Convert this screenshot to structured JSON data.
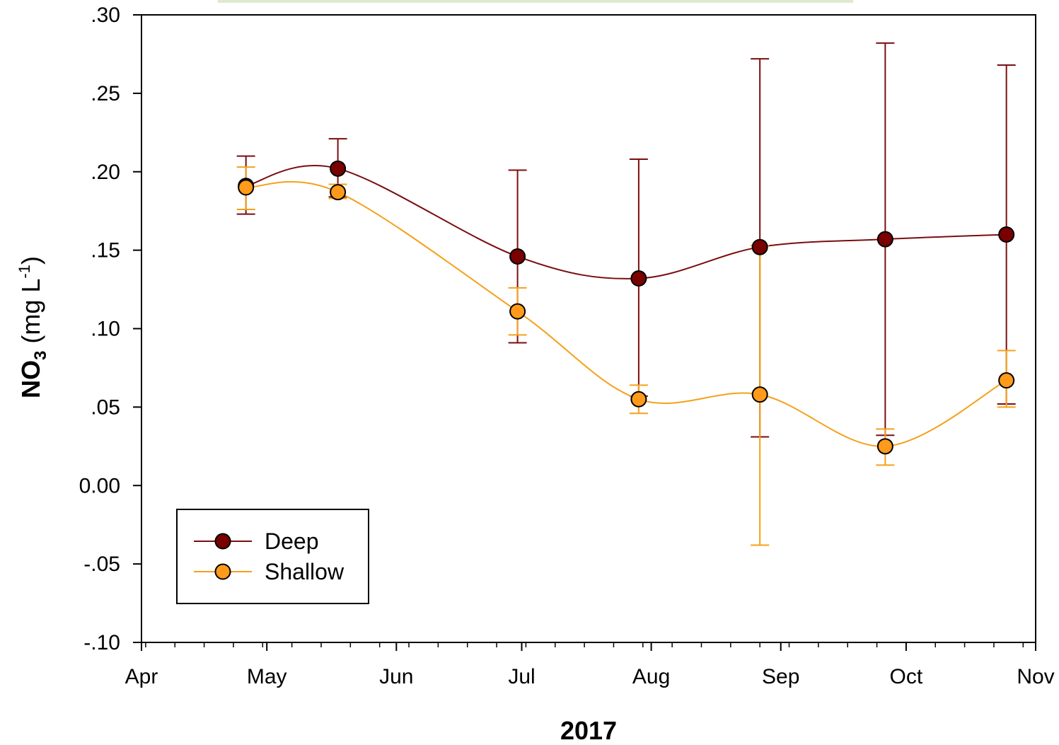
{
  "chart_data": {
    "type": "line",
    "xlabel": "2017",
    "ylabel": {
      "prefix": "NO",
      "subscript": "3",
      "unit_open": " (mg L",
      "superscript": "-1",
      "unit_close": ")"
    },
    "ylim": [
      -0.1,
      0.3
    ],
    "y_ticks": [
      {
        "value": 0.3,
        "label": ".30"
      },
      {
        "value": 0.25,
        "label": ".25"
      },
      {
        "value": 0.2,
        "label": ".20"
      },
      {
        "value": 0.15,
        "label": ".15"
      },
      {
        "value": 0.1,
        "label": ".10"
      },
      {
        "value": 0.05,
        "label": ".05"
      },
      {
        "value": 0.0,
        "label": "0.00"
      },
      {
        "value": -0.05,
        "label": "-.05"
      },
      {
        "value": -0.1,
        "label": "-.10"
      }
    ],
    "xlim": [
      "2017-04-01",
      "2017-11-01"
    ],
    "x_ticks": [
      {
        "date": "2017-04-01",
        "label": "Apr"
      },
      {
        "date": "2017-05-01",
        "label": "May"
      },
      {
        "date": "2017-06-01",
        "label": "Jun"
      },
      {
        "date": "2017-07-01",
        "label": "Jul"
      },
      {
        "date": "2017-08-01",
        "label": "Aug"
      },
      {
        "date": "2017-09-01",
        "label": "Sep"
      },
      {
        "date": "2017-10-01",
        "label": "Oct"
      },
      {
        "date": "2017-11-01",
        "label": "Nov"
      }
    ],
    "grid": false,
    "legend": "bottom-left",
    "series": [
      {
        "name": "Deep",
        "color": "#7a0e10",
        "marker_color": "#7a0000",
        "points": [
          {
            "x": "2017-04-26",
            "y": 0.191,
            "err_low": 0.173,
            "err_high": 0.21
          },
          {
            "x": "2017-05-18",
            "y": 0.202,
            "err_low": 0.184,
            "err_high": 0.221
          },
          {
            "x": "2017-06-30",
            "y": 0.146,
            "err_low": 0.091,
            "err_high": 0.201
          },
          {
            "x": "2017-07-29",
            "y": 0.132,
            "err_low": 0.057,
            "err_high": 0.208
          },
          {
            "x": "2017-08-27",
            "y": 0.152,
            "err_low": 0.031,
            "err_high": 0.272
          },
          {
            "x": "2017-09-26",
            "y": 0.157,
            "err_low": 0.032,
            "err_high": 0.282
          },
          {
            "x": "2017-10-25",
            "y": 0.16,
            "err_low": 0.052,
            "err_high": 0.268
          }
        ]
      },
      {
        "name": "Shallow",
        "color": "#f5a01a",
        "marker_color": "#ff9a1a",
        "points": [
          {
            "x": "2017-04-26",
            "y": 0.19,
            "err_low": 0.176,
            "err_high": 0.203
          },
          {
            "x": "2017-05-18",
            "y": 0.187,
            "err_low": 0.183,
            "err_high": 0.192
          },
          {
            "x": "2017-06-30",
            "y": 0.111,
            "err_low": 0.096,
            "err_high": 0.126
          },
          {
            "x": "2017-07-29",
            "y": 0.055,
            "err_low": 0.046,
            "err_high": 0.064
          },
          {
            "x": "2017-08-27",
            "y": 0.058,
            "err_low": -0.038,
            "err_high": 0.153
          },
          {
            "x": "2017-09-26",
            "y": 0.025,
            "err_low": 0.013,
            "err_high": 0.036
          },
          {
            "x": "2017-10-25",
            "y": 0.067,
            "err_low": 0.05,
            "err_high": 0.086
          }
        ]
      }
    ]
  }
}
